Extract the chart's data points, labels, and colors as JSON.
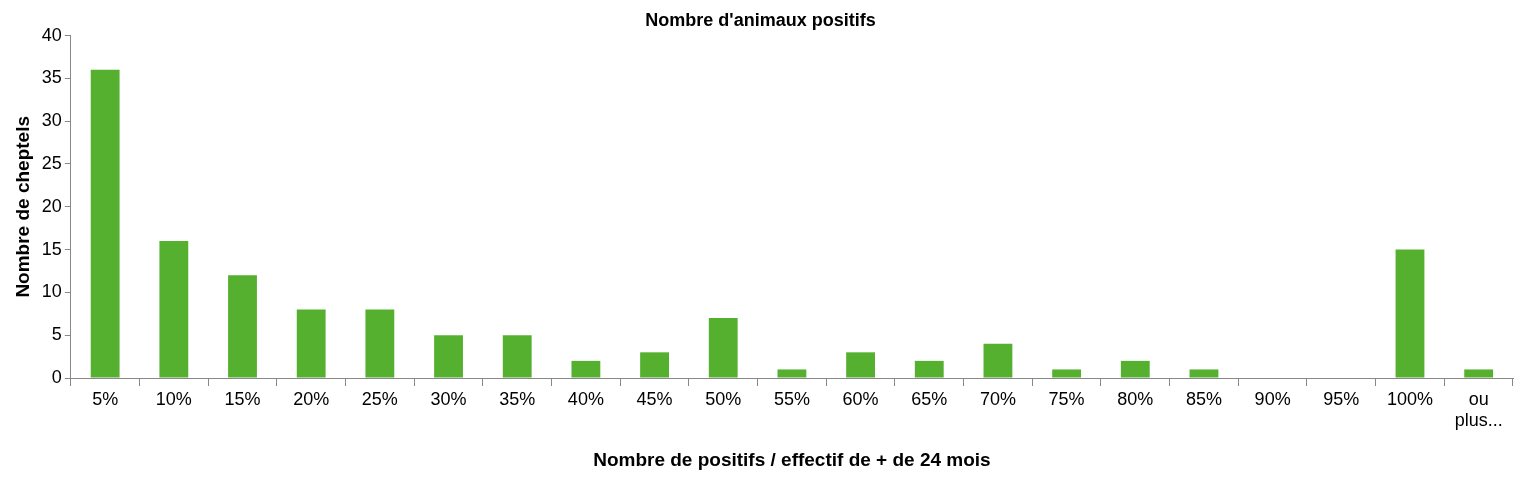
{
  "chart_data": {
    "type": "bar",
    "title": "Nombre d'animaux positifs",
    "xlabel": "Nombre de positifs / effectif de + de 24 mois",
    "ylabel": "Nombre de cheptels",
    "categories": [
      "5%",
      "10%",
      "15%",
      "20%",
      "25%",
      "30%",
      "35%",
      "40%",
      "45%",
      "50%",
      "55%",
      "60%",
      "65%",
      "70%",
      "75%",
      "80%",
      "85%",
      "90%",
      "95%",
      "100%",
      "ou plus..."
    ],
    "values": [
      36,
      16,
      12,
      8,
      8,
      5,
      5,
      2,
      3,
      7,
      1,
      3,
      2,
      4,
      1,
      2,
      1,
      0,
      0,
      15,
      1
    ],
    "color": "#56b030",
    "ylim": [
      0,
      40
    ],
    "yticks": [
      0,
      5,
      10,
      15,
      20,
      25,
      30,
      35,
      40
    ],
    "legend": false
  }
}
